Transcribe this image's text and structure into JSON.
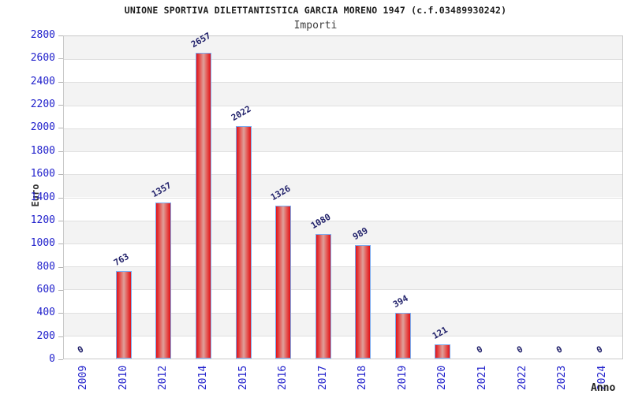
{
  "chart_data": {
    "type": "bar",
    "title": "UNIONE SPORTIVA DILETTANTISTICA GARCIA MORENO 1947 (c.f.03489930242)",
    "subtitle": "Importi",
    "xlabel": "Anno",
    "ylabel": "Euro",
    "categories": [
      "2009",
      "2010",
      "2012",
      "2014",
      "2015",
      "2016",
      "2017",
      "2018",
      "2019",
      "2020",
      "2021",
      "2022",
      "2023",
      "2024"
    ],
    "values": [
      0,
      763,
      1357,
      2657,
      2022,
      1326,
      1080,
      989,
      394,
      121,
      0,
      0,
      0,
      0
    ],
    "ylim": [
      0,
      2800
    ],
    "ytick_step": 200,
    "legend": "none",
    "grid": "horizontal-bands",
    "colors": {
      "bar_edge": "#e0121a",
      "bar_mid": "#dfa09b",
      "bar_border": "#7cabef",
      "axis_label": "#2222cc",
      "value_label": "#22226b",
      "band_gray": "#f3f3f3",
      "gridline": "#e0e0e0",
      "plot_border": "#c9c9c9",
      "title": "#1c1c1c",
      "axis_title": "#333333"
    }
  }
}
